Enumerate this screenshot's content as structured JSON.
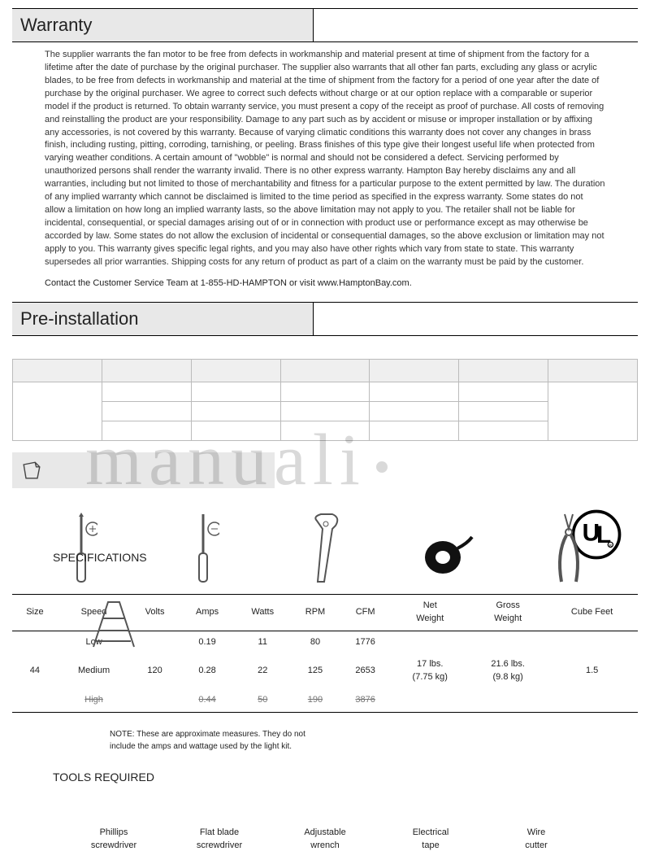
{
  "sections": {
    "warranty_title": "Warranty",
    "preinstall_title": "Pre-installation"
  },
  "warranty_text": "The supplier warrants the fan motor to be free from defects in workmanship and material present at time of shipment from the factory for a lifetime after the date of purchase by the original purchaser. The supplier also warrants that all other fan parts, excluding any glass or acrylic blades, to be free from defects in workmanship and material at the time of shipment from the factory for a period of one year after the date of purchase by the original purchaser. We agree to correct such defects without charge or at our option replace with a comparable or superior model if the product is returned. To obtain warranty service, you must present a copy of the receipt as proof of purchase. All costs of removing and reinstalling the product are your responsibility. Damage to any part such as by accident or misuse or improper installation or by affixing any accessories, is not covered by this warranty. Because of varying climatic conditions this warranty does not cover any changes in brass finish, including rusting, pitting, corroding, tarnishing, or peeling. Brass finishes of this type give their longest useful life when protected from varying weather conditions. A certain amount of \"wobble\" is normal and should not be considered a defect. Servicing performed by unauthorized persons shall render the warranty invalid. There is no other express warranty. Hampton Bay hereby disclaims any and all warranties, including but not limited to those of merchantability and fitness for a particular purpose to the extent permitted by law. The duration of any implied warranty which cannot be disclaimed is limited to the time period as specified in the express warranty. Some states do not allow a limitation on how long an implied warranty lasts, so the above limitation may not apply to you. The retailer shall not be liable for incidental, consequential, or special damages arising out of or in connection with product use or performance except as may otherwise be accorded by law. Some states do not allow the exclusion of incidental or consequential damages, so the above exclusion or limitation may not apply to you. This warranty gives specific legal rights, and you may also have other rights which vary from state to state. This warranty supersedes all prior warranties. Shipping costs for any return of product as part of a claim on the warranty must be paid by the customer.",
  "contact_text": "Contact the Customer Service Team at 1-855-HD-HAMPTON or visit www.HamptonBay.com.",
  "watermark_text": "manuali",
  "spec_heading": "SPECIFICATIONS",
  "spec_columns": [
    "Size",
    "Speed",
    "Volts",
    "Amps",
    "Watts",
    "RPM",
    "CFM",
    "Net\nWeight",
    "Gross\nWeight",
    "Cube Feet"
  ],
  "spec_rows": [
    {
      "size": "",
      "speed": "Low",
      "volts": "",
      "amps": "0.19",
      "watts": "11",
      "rpm": "80",
      "cfm": "1776",
      "net": "",
      "gross": "",
      "cube": ""
    },
    {
      "size": "44",
      "speed": "Medium",
      "volts": "120",
      "amps": "0.28",
      "watts": "22",
      "rpm": "125",
      "cfm": "2653",
      "net": "17 lbs.\n(7.75 kg)",
      "gross": "21.6 lbs.\n(9.8 kg)",
      "cube": "1.5"
    },
    {
      "size": "",
      "speed": "High",
      "volts": "",
      "amps": "0.44",
      "watts": "50",
      "rpm": "190",
      "cfm": "3876",
      "net": "",
      "gross": "",
      "cube": "",
      "strike": true
    }
  ],
  "note_text": "NOTE: These are approximate measures. They do not include the amps and wattage used by the light kit.",
  "tools_heading": "TOOLS REQUIRED",
  "tool_labels": [
    "Phillips\nscrewdriver",
    "Flat blade\nscrewdriver",
    "Adjustable\nwrench",
    "Electrical\ntape",
    "Wire\ncutter"
  ],
  "colors": {
    "header_bg": "#e8e8e8",
    "border": "#000000",
    "text": "#222222",
    "watermark": "rgba(0,0,0,0.15)"
  }
}
